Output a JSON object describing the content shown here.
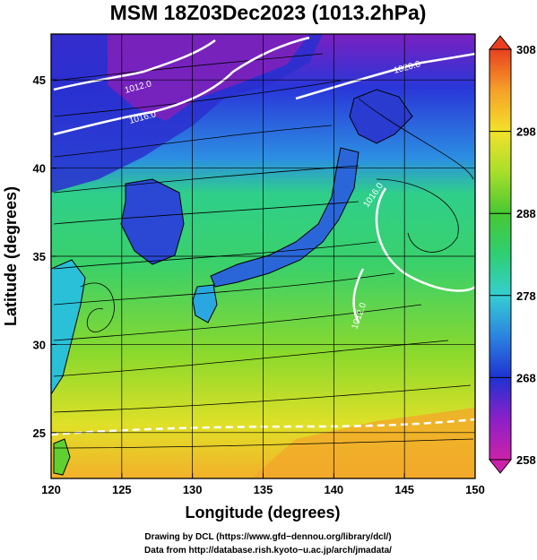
{
  "header": {
    "title": "MSM 18Z03Dec2023 (1013.2hPa)"
  },
  "chart_data": {
    "type": "heatmap",
    "title": "MSM 18Z03Dec2023 (1013.2hPa)",
    "xlabel": "Longitude (degrees)",
    "ylabel": "Latitude  (degrees)",
    "xlim": [
      120,
      150
    ],
    "ylim": [
      22.4,
      47.6
    ],
    "x_ticks": [
      "120",
      "125",
      "130",
      "135",
      "140",
      "145",
      "150"
    ],
    "y_ticks": [
      "25",
      "30",
      "35",
      "40",
      "45"
    ],
    "grid": true,
    "colorbar": {
      "min": 258,
      "max": 308,
      "tick_labels": [
        "308",
        "298",
        "288",
        "278",
        "268",
        "258"
      ],
      "colors": [
        "#cc22aa",
        "#8b20c8",
        "#1e32d2",
        "#2b83e0",
        "#35cfd2",
        "#2fcf73",
        "#46c832",
        "#a8de2a",
        "#f2e22a",
        "#f6a028",
        "#e8401e"
      ]
    },
    "contours": [
      {
        "label": "1012.0"
      },
      {
        "label": "1016.0"
      },
      {
        "label": "1020.0"
      },
      {
        "label": "1016.0"
      },
      {
        "label": "1012.0"
      }
    ]
  },
  "footer": {
    "line1": "Drawing by DCL (https://www.gfd−dennou.org/library/dcl/)",
    "line2": "Data from http://database.rish.kyoto−u.ac.jp/arch/jmadata/"
  }
}
